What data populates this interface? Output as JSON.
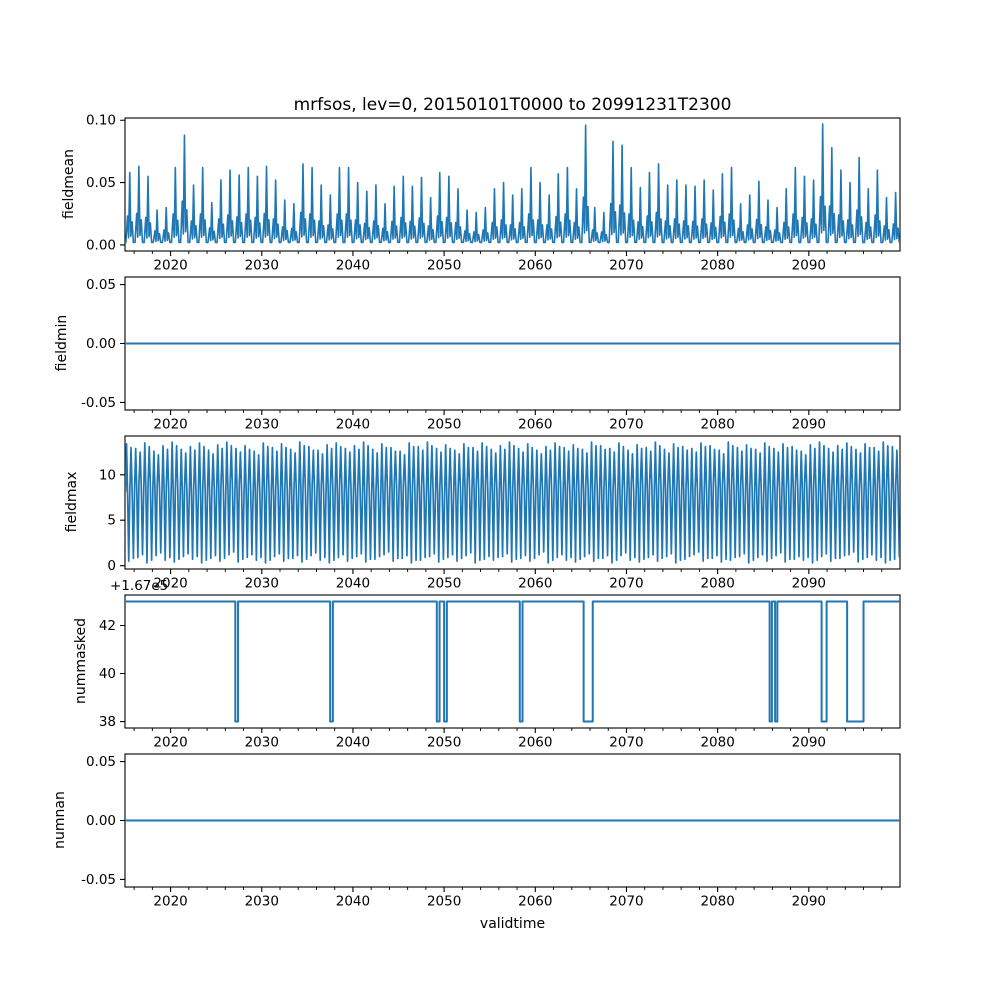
{
  "figure": {
    "title": "mrfsos, lev=0, 20150101T0000 to 20991231T2300",
    "xlabel": "validtime",
    "line_color": "#1f77b4",
    "background": "#ffffff",
    "text_color": "#000000"
  },
  "chart_data": [
    {
      "type": "line",
      "ylabel": "fieldmean",
      "x_range": [
        2015,
        2100
      ],
      "x_major_ticks": [
        2020,
        2030,
        2040,
        2050,
        2060,
        2070,
        2080,
        2090
      ],
      "x_minor_step": 2,
      "ylim": [
        -0.0049,
        0.1018
      ],
      "y_ticks": [
        {
          "v": 0.0,
          "label": "0.00"
        },
        {
          "v": 0.05,
          "label": "0.05"
        },
        {
          "v": 0.1,
          "label": "0.10"
        }
      ],
      "series": [
        {
          "name": "fieldmean",
          "kind": "annual_spikes",
          "start_year": 2015,
          "baseline": 0.002,
          "annual_peaks": [
            0.058,
            0.063,
            0.055,
            0.028,
            0.03,
            0.062,
            0.088,
            0.048,
            0.062,
            0.034,
            0.052,
            0.06,
            0.056,
            0.062,
            0.055,
            0.063,
            0.052,
            0.036,
            0.033,
            0.065,
            0.062,
            0.048,
            0.04,
            0.062,
            0.062,
            0.05,
            0.043,
            0.048,
            0.033,
            0.047,
            0.055,
            0.047,
            0.054,
            0.038,
            0.058,
            0.055,
            0.045,
            0.028,
            0.026,
            0.03,
            0.045,
            0.05,
            0.04,
            0.045,
            0.062,
            0.05,
            0.04,
            0.057,
            0.062,
            0.045,
            0.096,
            0.03,
            0.026,
            0.083,
            0.08,
            0.062,
            0.046,
            0.058,
            0.065,
            0.048,
            0.052,
            0.048,
            0.047,
            0.052,
            0.044,
            0.057,
            0.062,
            0.033,
            0.04,
            0.051,
            0.036,
            0.03,
            0.045,
            0.062,
            0.055,
            0.052,
            0.097,
            0.078,
            0.06,
            0.05,
            0.07,
            0.045,
            0.06,
            0.038,
            0.042
          ]
        }
      ]
    },
    {
      "type": "line",
      "ylabel": "fieldmin",
      "x_range": [
        2015,
        2100
      ],
      "x_major_ticks": [
        2020,
        2030,
        2040,
        2050,
        2060,
        2070,
        2080,
        2090
      ],
      "x_minor_step": 2,
      "ylim": [
        -0.0564,
        0.0564
      ],
      "y_ticks": [
        {
          "v": -0.05,
          "label": "-0.05"
        },
        {
          "v": 0.0,
          "label": "0.00"
        },
        {
          "v": 0.05,
          "label": "0.05"
        }
      ],
      "series": [
        {
          "name": "fieldmin",
          "kind": "constant",
          "value": 0.0
        }
      ]
    },
    {
      "type": "line",
      "ylabel": "fieldmax",
      "x_range": [
        2015,
        2100
      ],
      "x_major_ticks": [
        2020,
        2030,
        2040,
        2050,
        2060,
        2070,
        2080,
        2090
      ],
      "x_minor_step": 2,
      "ylim": [
        -0.37,
        14.27
      ],
      "y_ticks": [
        {
          "v": 0,
          "label": "0"
        },
        {
          "v": 5,
          "label": "5"
        },
        {
          "v": 10,
          "label": "10"
        }
      ],
      "series": [
        {
          "name": "fieldmax",
          "kind": "annual_oscillation",
          "start_year": 2015,
          "mid_band": 8.5,
          "annual_max": [
            13.4,
            12.9,
            13.5,
            12.6,
            13.2,
            13.6,
            12.8,
            13.1,
            13.5,
            12.7,
            13.3,
            13.6,
            12.9,
            13.2,
            12.6,
            13.5,
            13.0,
            13.4,
            12.8,
            13.6,
            13.1,
            12.7,
            13.3,
            13.5,
            12.9,
            13.2,
            13.6,
            12.8,
            13.4,
            13.0,
            12.6,
            13.5,
            13.1,
            13.6,
            12.9,
            13.3,
            12.7,
            13.4,
            13.0,
            13.5,
            12.8,
            13.2,
            13.6,
            12.9,
            13.4,
            12.7,
            13.1,
            13.5,
            13.0,
            13.3,
            12.8,
            13.6,
            13.2,
            12.9,
            13.5,
            12.7,
            13.3,
            13.0,
            13.6,
            12.8,
            13.4,
            13.1,
            12.9,
            13.5,
            13.2,
            12.7,
            13.6,
            13.0,
            13.3,
            12.8,
            13.5,
            12.9,
            13.4,
            13.1,
            12.6,
            13.3,
            13.6,
            12.9,
            13.2,
            13.5,
            12.8,
            13.4,
            13.0,
            13.6,
            13.1
          ],
          "annual_min": [
            0.5,
            0.9,
            0.3,
            1.1,
            0.6,
            0.4,
            1.0,
            0.7,
            0.3,
            0.8,
            0.5,
            1.2,
            0.4,
            0.9,
            0.6,
            0.3,
            1.0,
            0.5,
            0.8,
            0.4,
            1.1,
            0.6,
            0.3,
            0.9,
            0.5,
            1.0,
            0.4,
            0.7,
            1.2,
            0.5,
            0.8,
            0.3,
            0.6,
            1.0,
            0.4,
            0.9,
            0.5,
            1.1,
            0.3,
            0.7,
            0.6,
            1.0,
            0.4,
            0.8,
            0.5,
            1.2,
            0.3,
            0.9,
            0.6,
            0.4,
            1.0,
            0.5,
            0.8,
            0.3,
            1.1,
            0.6,
            0.4,
            0.9,
            0.5,
            1.0,
            0.3,
            0.7,
            1.2,
            0.5,
            0.8,
            0.4,
            0.6,
            1.0,
            0.3,
            0.9,
            0.5,
            1.1,
            0.4,
            0.7,
            0.6,
            0.3,
            1.0,
            0.5,
            0.8,
            1.2,
            0.4,
            0.9,
            0.6,
            0.3,
            0.7
          ]
        }
      ]
    },
    {
      "type": "line",
      "ylabel": "nummasked",
      "x_range": [
        2015,
        2100
      ],
      "x_major_ticks": [
        2020,
        2030,
        2040,
        2050,
        2060,
        2070,
        2080,
        2090
      ],
      "x_minor_step": 2,
      "ylim": [
        37.73,
        43.27
      ],
      "y_ticks": [
        {
          "v": 38,
          "label": "38"
        },
        {
          "v": 40,
          "label": "40"
        },
        {
          "v": 42,
          "label": "42"
        }
      ],
      "y_offset_text": "+1.67e5",
      "series": [
        {
          "name": "nummasked",
          "kind": "step_dips",
          "base_value": 43,
          "dip_value": 38,
          "dips": [
            [
              2027.1,
              2027.4
            ],
            [
              2037.5,
              2037.8
            ],
            [
              2049.2,
              2049.5
            ],
            [
              2050.0,
              2050.3
            ],
            [
              2058.3,
              2058.6
            ],
            [
              2065.3,
              2066.3
            ],
            [
              2085.7,
              2085.95
            ],
            [
              2086.3,
              2086.55
            ],
            [
              2091.4,
              2091.95
            ],
            [
              2094.2,
              2096.0
            ]
          ]
        }
      ]
    },
    {
      "type": "line",
      "ylabel": "numnan",
      "x_range": [
        2015,
        2100
      ],
      "x_major_ticks": [
        2020,
        2030,
        2040,
        2050,
        2060,
        2070,
        2080,
        2090
      ],
      "x_minor_step": 2,
      "ylim": [
        -0.0564,
        0.0564
      ],
      "y_ticks": [
        {
          "v": -0.05,
          "label": "-0.05"
        },
        {
          "v": 0.0,
          "label": "0.00"
        },
        {
          "v": 0.05,
          "label": "0.05"
        }
      ],
      "series": [
        {
          "name": "numnan",
          "kind": "constant",
          "value": 0.0
        }
      ]
    }
  ]
}
